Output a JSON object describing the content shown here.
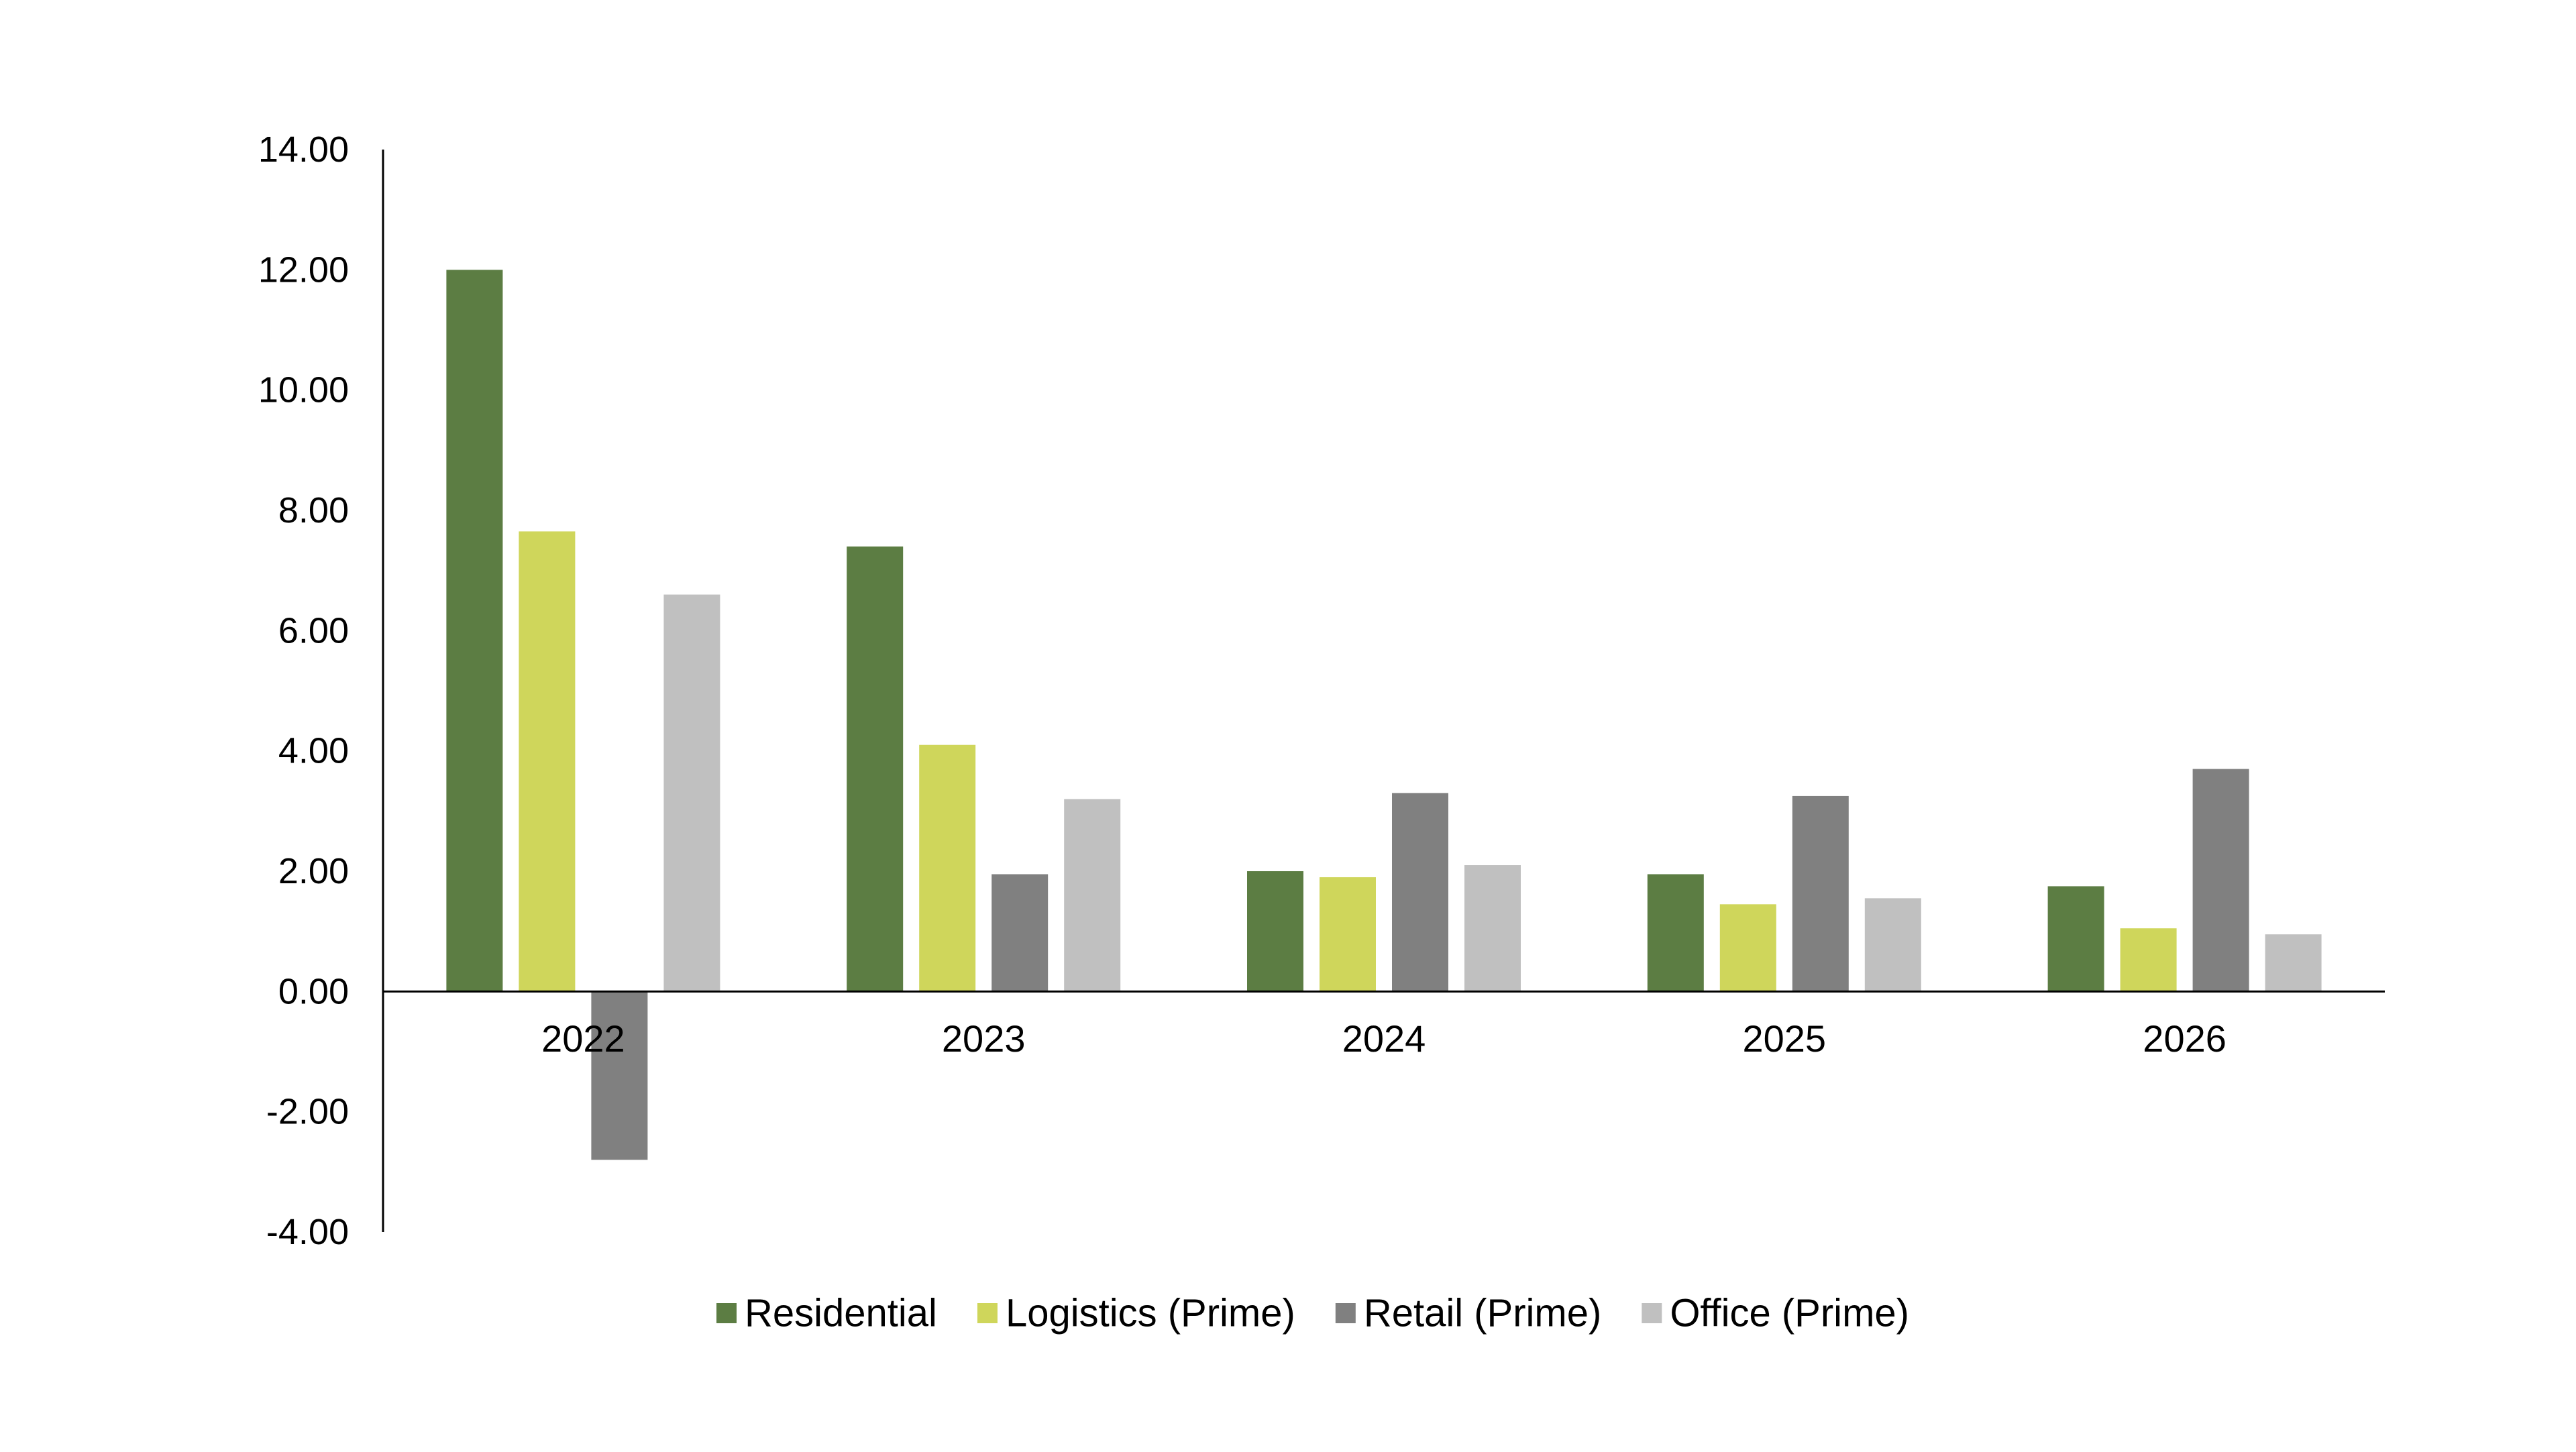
{
  "chart_data": {
    "type": "bar",
    "title": "",
    "xlabel": "",
    "ylabel": "",
    "categories": [
      "2022",
      "2023",
      "2024",
      "2025",
      "2026"
    ],
    "series": [
      {
        "name": "Residential",
        "color": "#5c7d43",
        "values": [
          12.0,
          7.4,
          2.0,
          1.95,
          1.75
        ]
      },
      {
        "name": "Logistics (Prime)",
        "color": "#cfd65b",
        "values": [
          7.65,
          4.1,
          1.9,
          1.45,
          1.05
        ]
      },
      {
        "name": "Retail (Prime)",
        "color": "#808080",
        "values": [
          -2.8,
          1.95,
          3.3,
          3.25,
          3.7
        ]
      },
      {
        "name": "Office (Prime)",
        "color": "#c0c0c0",
        "values": [
          6.6,
          3.2,
          2.1,
          1.55,
          0.95
        ]
      }
    ],
    "ylim": [
      -4,
      14
    ],
    "yticks": [
      "14.00",
      "12.00",
      "10.00",
      "8.00",
      "6.00",
      "4.00",
      "2.00",
      "0.00",
      "-2.00",
      "-4.00"
    ],
    "grid": false,
    "legend_position": "bottom"
  }
}
